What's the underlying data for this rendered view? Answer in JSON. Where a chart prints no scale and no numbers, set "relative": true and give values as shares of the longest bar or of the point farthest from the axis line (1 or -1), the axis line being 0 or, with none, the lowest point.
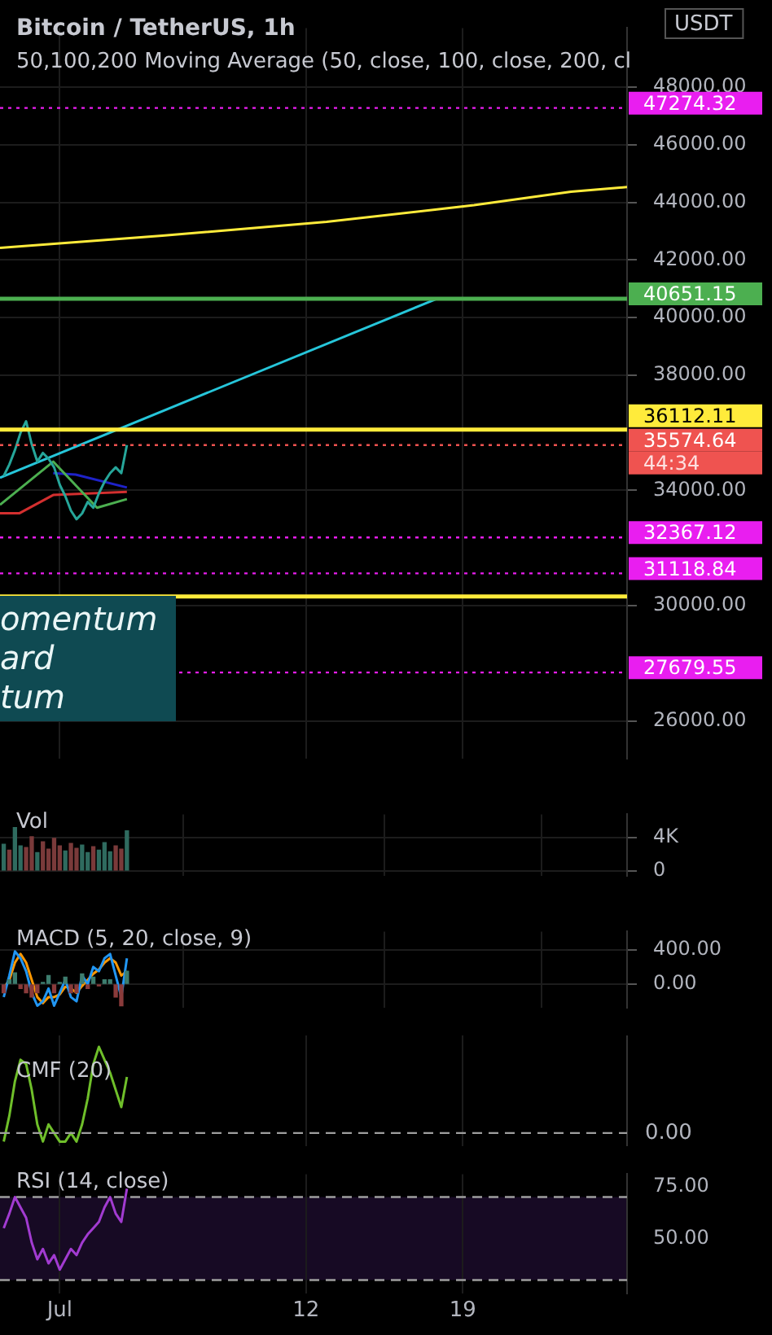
{
  "chart_data": [
    {
      "type": "line",
      "title": "Bitcoin / TetherUS, 1h",
      "subtitle": "50,100,200 Moving Average (50, close, 100, close, 200, cl",
      "ylabel": "USDT",
      "xlim": [
        "--06-28T08:00",
        "--07-26T08:00"
      ],
      "ylim": [
        24700,
        50050
      ],
      "xticks": [
        {
          "value": "--07-01",
          "label": null
        },
        {
          "value": "--07-12",
          "label": null
        },
        {
          "value": "--07-19",
          "label": null
        }
      ],
      "yticks": [
        {
          "value": 26000,
          "label": "26000.00"
        },
        {
          "value": 30000,
          "label": "30000.00"
        },
        {
          "value": 34000,
          "label": "34000.00"
        },
        {
          "value": 38000,
          "label": "38000.00"
        },
        {
          "value": 40000,
          "label": "40000.00"
        },
        {
          "value": 42000,
          "label": "42000.00"
        },
        {
          "value": 44000,
          "label": "44000.00"
        },
        {
          "value": 46000,
          "label": "46000.00"
        },
        {
          "value": 48000,
          "label": "48000.00"
        }
      ],
      "tick_labels": "y",
      "grid": true,
      "legend": false,
      "series": [
        {
          "color": "#26a69a",
          "x": [
            "--06-28T12:00",
            "--06-28T18:00",
            "--06-29T00:00",
            "--06-29T06:00",
            "--06-29T12:00",
            "--06-29T18:00",
            "--06-30T00:00",
            "--06-30T06:00",
            "--06-30T12:00",
            "--06-30T18:00",
            "--07-01T00:00",
            "--07-01T06:00",
            "--07-01T12:00",
            "--07-01T18:00",
            "--07-02T00:00",
            "--07-02T06:00",
            "--07-02T12:00",
            "--07-02T18:00",
            "--07-03T00:00",
            "--07-03T06:00",
            "--07-03T12:00",
            "--07-03T18:00",
            "--07-04T00:00"
          ],
          "values": [
            34500,
            34900,
            35400,
            36000,
            36400,
            35600,
            35000,
            35300,
            35100,
            34800,
            34200,
            33800,
            33300,
            33000,
            33200,
            33600,
            33400,
            33900,
            34300,
            34600,
            34800,
            34600,
            35574.64
          ]
        },
        {
          "color": "#4caf50",
          "x": [
            "--06-28T08:00",
            "--06-30T17:00",
            "--07-02T16:00",
            "--07-04T00:00"
          ],
          "values": [
            33500,
            35000,
            33400,
            33700
          ]
        },
        {
          "color": "#1e22c8",
          "x": [
            "--06-30T17:00",
            "--07-01T17:00",
            "--07-04T00:00"
          ],
          "values": [
            34600,
            34550,
            34100
          ]
        },
        {
          "color": "#d32f2f",
          "x": [
            "--06-28T08:00",
            "--06-29T05:00",
            "--06-30T17:00",
            "--07-04T00:00"
          ],
          "values": [
            33210,
            33210,
            33840,
            33950
          ]
        },
        {
          "color": "#ffeb3b",
          "x": [
            "--06-28T08:00",
            "--07-05T14:00",
            "--07-12T22:00",
            "--07-19T12:00",
            "--07-23T20:00",
            "--07-26T08:00"
          ],
          "values": [
            42420,
            42840,
            43320,
            43900,
            44370,
            44530
          ]
        },
        {
          "color": "#26c6da",
          "x": [
            "--06-28T08:00",
            "--07-17T20:00"
          ],
          "values": [
            34440,
            40651.15
          ]
        }
      ],
      "ref_lines": [
        {
          "axis": "y",
          "value": 47274.32,
          "label": "47274.32",
          "color": "#e91ef0",
          "line_style": "dotted"
        },
        {
          "axis": "y",
          "value": 40651.15,
          "label": "40651.15",
          "color": "#4caf50",
          "line_style": "solid"
        },
        {
          "axis": "y",
          "value": 36112.11,
          "label": "36112.11",
          "color": "#ffeb3b",
          "line_style": "solid"
        },
        {
          "axis": "y",
          "value": 35574.64,
          "label": "35574.64\n44:34",
          "color": "#ef5350",
          "line_style": "dotted"
        },
        {
          "axis": "y",
          "value": 32367.12,
          "label": "32367.12",
          "color": "#e91ef0",
          "line_style": "dotted"
        },
        {
          "axis": "y",
          "value": 31118.84,
          "label": "31118.84",
          "color": "#e91ef0",
          "line_style": "dotted"
        },
        {
          "axis": "y",
          "value": 30320,
          "label": null,
          "color": "#ffeb3b",
          "line_style": "solid"
        },
        {
          "axis": "y",
          "value": 27679.55,
          "label": "27679.55",
          "color": "#e91ef0",
          "line_style": "dotted"
        }
      ],
      "annotations": [
        "omentum",
        "ard",
        "tum"
      ]
    },
    {
      "type": "bar",
      "title": "Vol",
      "xlim": [
        "--06-28T08:00",
        "--07-26T08:00"
      ],
      "ylim": [
        -550,
        6780
      ],
      "xticks": [
        {
          "value": "--07-01",
          "label": null
        },
        {
          "value": "--07-12",
          "label": null
        },
        {
          "value": "--07-19",
          "label": null
        }
      ],
      "yticks": [
        0,
        {
          "value": 4000,
          "label": "4K"
        }
      ],
      "tick_labels": "y",
      "grid": true,
      "legend": false,
      "x": [
        "--06-28T12:00",
        "--06-28T18:00",
        "--06-29T00:00",
        "--06-29T06:00",
        "--06-29T12:00",
        "--06-29T18:00",
        "--06-30T00:00",
        "--06-30T06:00",
        "--06-30T12:00",
        "--06-30T18:00",
        "--07-01T00:00",
        "--07-01T06:00",
        "--07-01T12:00",
        "--07-01T18:00",
        "--07-02T00:00",
        "--07-02T06:00",
        "--07-02T12:00",
        "--07-02T18:00",
        "--07-03T00:00",
        "--07-03T06:00",
        "--07-03T12:00",
        "--07-03T18:00",
        "--07-04T00:00"
      ],
      "values": [
        3200,
        2500,
        5200,
        3000,
        2800,
        4100,
        2200,
        3500,
        2600,
        3900,
        3000,
        2400,
        3300,
        2700,
        3100,
        2200,
        2900,
        2500,
        3400,
        2300,
        3000,
        2600,
        4800
      ],
      "colors": [
        "#2f6b5f",
        "#7a3a3a",
        "#2f6b5f",
        "#2f6b5f",
        "#7a3a3a",
        "#7a3a3a",
        "#2f6b5f",
        "#7a3a3a",
        "#7a3a3a",
        "#7a3a3a",
        "#7a3a3a",
        "#2f6b5f",
        "#7a3a3a",
        "#7a3a3a",
        "#2f6b5f",
        "#2f6b5f",
        "#7a3a3a",
        "#2f6b5f",
        "#2f6b5f",
        "#2f6b5f",
        "#7a3a3a",
        "#7a3a3a",
        "#2f6b5f"
      ]
    },
    {
      "type": "line",
      "title": "MACD (5, 20, close, 9)",
      "xlim": [
        "--06-28T08:00",
        "--07-26T08:00"
      ],
      "ylim": [
        -270,
        610
      ],
      "xticks": [
        {
          "value": "--07-01",
          "label": null
        },
        {
          "value": "--07-12",
          "label": null
        },
        {
          "value": "--07-19",
          "label": null
        }
      ],
      "yticks": [
        {
          "value": 0,
          "label": "0.00"
        },
        {
          "value": 400,
          "label": "400.00"
        }
      ],
      "tick_labels": "y",
      "grid": true,
      "legend": false,
      "x": [
        "--06-28T12:00",
        "--06-28T18:00",
        "--06-29T00:00",
        "--06-29T06:00",
        "--06-29T12:00",
        "--06-29T18:00",
        "--06-30T00:00",
        "--06-30T06:00",
        "--06-30T12:00",
        "--06-30T18:00",
        "--07-01T00:00",
        "--07-01T06:00",
        "--07-01T12:00",
        "--07-01T18:00",
        "--07-02T00:00",
        "--07-02T06:00",
        "--07-02T12:00",
        "--07-02T18:00",
        "--07-03T00:00",
        "--07-03T06:00",
        "--07-03T12:00",
        "--07-03T18:00",
        "--07-04T00:00"
      ],
      "series": [
        {
          "type": "bar",
          "values": [
            -100,
            50,
            130,
            -50,
            -100,
            -150,
            -100,
            20,
            100,
            -100,
            20,
            80,
            -100,
            -100,
            120,
            -50,
            80,
            -20,
            50,
            50,
            -150,
            -250,
            150
          ],
          "colors": [
            "#8a3b3b",
            "#3d7d6e",
            "#3d7d6e",
            "#8a3b3b",
            "#8a3b3b",
            "#8a3b3b",
            "#8a3b3b",
            "#3d7d6e",
            "#3d7d6e",
            "#8a3b3b",
            "#3d7d6e",
            "#3d7d6e",
            "#8a3b3b",
            "#8a3b3b",
            "#3d7d6e",
            "#8a3b3b",
            "#3d7d6e",
            "#8a3b3b",
            "#3d7d6e",
            "#3d7d6e",
            "#8a3b3b",
            "#8a3b3b",
            "#3d7d6e"
          ]
        },
        {
          "color": "#2196f3",
          "values": [
            -150,
            100,
            380,
            300,
            150,
            -100,
            -250,
            -200,
            -50,
            -250,
            -100,
            50,
            -150,
            -200,
            100,
            0,
            200,
            150,
            300,
            350,
            100,
            -150,
            300
          ]
        },
        {
          "color": "#ff9800",
          "values": [
            -50,
            50,
            250,
            350,
            250,
            50,
            -150,
            -220,
            -150,
            -150,
            -120,
            -30,
            -50,
            -100,
            -20,
            50,
            120,
            170,
            250,
            300,
            250,
            100,
            150
          ]
        }
      ]
    },
    {
      "type": "line",
      "title": "CMF (20)",
      "relative": true,
      "xlim": [
        "--06-28T08:00",
        "--07-26T08:00"
      ],
      "xticks": [
        {
          "value": "--07-01",
          "label": null
        },
        {
          "value": "--07-12",
          "label": null
        },
        {
          "value": "--07-19",
          "label": null
        }
      ],
      "tick_labels": "y",
      "grid": "x",
      "legend": false,
      "x": [
        "--06-28T12:00",
        "--06-28T18:00",
        "--06-29T00:00",
        "--06-29T06:00",
        "--06-29T12:00",
        "--06-29T18:00",
        "--06-30T00:00",
        "--06-30T06:00",
        "--06-30T12:00",
        "--06-30T18:00",
        "--07-01T00:00",
        "--07-01T06:00",
        "--07-01T12:00",
        "--07-01T18:00",
        "--07-02T00:00",
        "--07-02T06:00",
        "--07-02T12:00",
        "--07-02T18:00",
        "--07-03T00:00",
        "--07-03T06:00",
        "--07-03T12:00",
        "--07-03T18:00",
        "--07-04T00:00"
      ],
      "series": [
        {
          "color": "#6fbf2a",
          "values": [
            -0.1,
            0.2,
            0.6,
            0.85,
            0.8,
            0.5,
            0.1,
            -0.1,
            0.1,
            0,
            -0.1,
            -0.1,
            0,
            -0.1,
            0.1,
            0.4,
            0.8,
            1,
            0.85,
            0.7,
            0.5,
            0.3,
            0.65
          ]
        }
      ],
      "ref_lines": [
        {
          "axis": "y",
          "value": 0,
          "label": "0.00",
          "color": "#9e9e9e",
          "line_style": "dashed"
        }
      ]
    },
    {
      "type": "line",
      "title": "RSI (14, close)",
      "xlim": [
        "--06-28T08:00",
        "--07-26T08:00"
      ],
      "ylim": [
        23.6,
        81
      ],
      "xticks": [
        {
          "value": "--07-01",
          "label": "Jul"
        },
        {
          "value": "--07-12",
          "label": "12"
        },
        {
          "value": "--07-19",
          "label": "19"
        }
      ],
      "yticks": [
        {
          "value": 50,
          "label": "50.00"
        },
        {
          "value": 75,
          "label": "75.00"
        }
      ],
      "grid": "x",
      "legend": false,
      "x": [
        "--06-28T12:00",
        "--06-28T18:00",
        "--06-29T00:00",
        "--06-29T06:00",
        "--06-29T12:00",
        "--06-29T18:00",
        "--06-30T00:00",
        "--06-30T06:00",
        "--06-30T12:00",
        "--06-30T18:00",
        "--07-01T00:00",
        "--07-01T06:00",
        "--07-01T12:00",
        "--07-01T18:00",
        "--07-02T00:00",
        "--07-02T06:00",
        "--07-02T12:00",
        "--07-02T18:00",
        "--07-03T00:00",
        "--07-03T06:00",
        "--07-03T12:00",
        "--07-03T18:00",
        "--07-04T00:00"
      ],
      "series": [
        {
          "color": "#a23bd1",
          "values": [
            55,
            62,
            70,
            65,
            60,
            48,
            40,
            45,
            38,
            42,
            35,
            40,
            45,
            42,
            48,
            52,
            55,
            58,
            65,
            70,
            62,
            58,
            74
          ]
        }
      ],
      "bands": [
        {
          "axis": "y",
          "from": 30,
          "to": 70,
          "color": "#170a24"
        }
      ],
      "ref_lines": [
        {
          "axis": "y",
          "value": 70,
          "label": null,
          "color": "#9e9e9e",
          "line_style": "dashed"
        },
        {
          "axis": "y",
          "value": 30,
          "label": null,
          "color": "#9e9e9e",
          "line_style": "dashed"
        }
      ]
    }
  ]
}
